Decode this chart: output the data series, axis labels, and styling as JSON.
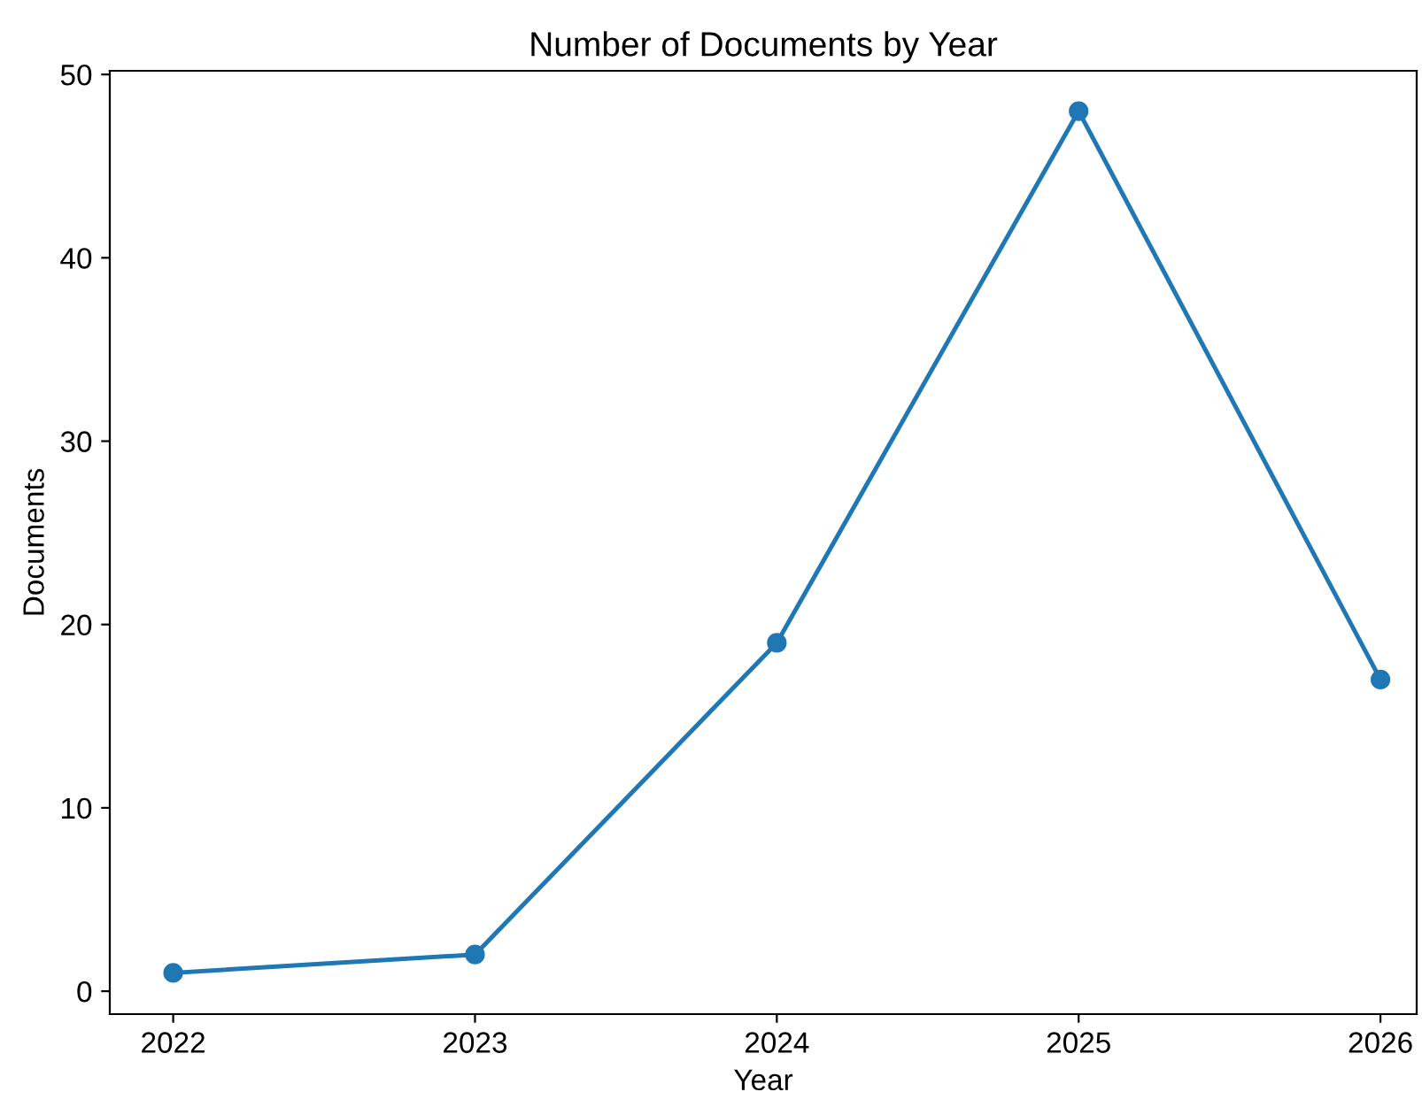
{
  "chart_data": {
    "type": "line",
    "title": "Number of Documents by Year",
    "xlabel": "Year",
    "ylabel": "Documents",
    "x": [
      2022,
      2023,
      2024,
      2025,
      2026
    ],
    "series": [
      {
        "color": "#1f77b4",
        "values": [
          1,
          2,
          19,
          48,
          17
        ]
      }
    ],
    "marker": "circle",
    "line_style": "solid",
    "xlim": [
      2021.79,
      2026.12
    ],
    "xticks": [
      2022,
      2023,
      2024,
      2025,
      2026
    ],
    "ylim": [
      -1.25,
      50.2
    ],
    "yticks": [
      0,
      10,
      20,
      30,
      40,
      50
    ],
    "grid": false,
    "legend": false
  }
}
